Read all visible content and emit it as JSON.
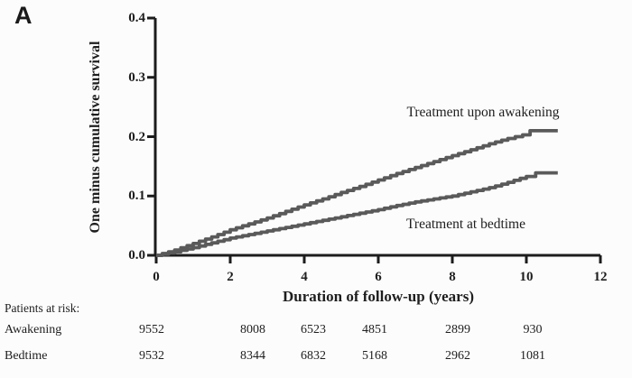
{
  "panel_label": "A",
  "colors": {
    "curve": "#5a5a5a",
    "axis": "#1c1c1c",
    "text": "#1e1e1e",
    "background": "#fcfcfc"
  },
  "chart_data": {
    "type": "line",
    "subtype": "kaplan-meier-step",
    "title": "",
    "ylabel": "One minus cumulative survival",
    "xlabel": "Duration of follow-up (years)",
    "xlim": [
      0,
      12
    ],
    "ylim": [
      0,
      0.4
    ],
    "xticks": [
      0,
      2,
      4,
      6,
      8,
      10,
      12
    ],
    "yticks": [
      "0.0",
      "0.1",
      "0.2",
      "0.3",
      "0.4"
    ],
    "grid": false,
    "legend_position": "inline-annotations",
    "series": [
      {
        "name": "Treatment upon awakening",
        "x": [
          0,
          0.5,
          1,
          1.5,
          2,
          2.5,
          3,
          3.5,
          4,
          4.5,
          5,
          5.5,
          6,
          6.5,
          7,
          7.5,
          8,
          8.5,
          9,
          9.5,
          9.9,
          10.1,
          10.85
        ],
        "y": [
          0,
          0.009,
          0.02,
          0.031,
          0.043,
          0.053,
          0.063,
          0.074,
          0.085,
          0.095,
          0.106,
          0.116,
          0.127,
          0.138,
          0.148,
          0.158,
          0.168,
          0.178,
          0.188,
          0.197,
          0.203,
          0.21,
          0.21
        ]
      },
      {
        "name": "Treatment at bedtime",
        "x": [
          0,
          0.5,
          1,
          1.5,
          2,
          2.5,
          3,
          3.5,
          4,
          4.5,
          5,
          5.5,
          6,
          6.5,
          7,
          7.5,
          8,
          8.5,
          9,
          9.5,
          10.0,
          10.25,
          10.85
        ],
        "y": [
          0,
          0.006,
          0.013,
          0.021,
          0.029,
          0.035,
          0.041,
          0.047,
          0.053,
          0.059,
          0.065,
          0.071,
          0.077,
          0.084,
          0.09,
          0.095,
          0.1,
          0.107,
          0.114,
          0.123,
          0.133,
          0.139,
          0.139
        ]
      }
    ]
  },
  "risk_table": {
    "title": "Patients at risk:",
    "time_points": [
      0,
      2,
      4,
      6,
      8,
      10
    ],
    "rows": [
      {
        "label": "Awakening",
        "values": [
          9552,
          8008,
          6523,
          4851,
          2899,
          930
        ]
      },
      {
        "label": "Bedtime",
        "values": [
          9532,
          8344,
          6832,
          5168,
          2962,
          1081
        ]
      }
    ]
  }
}
